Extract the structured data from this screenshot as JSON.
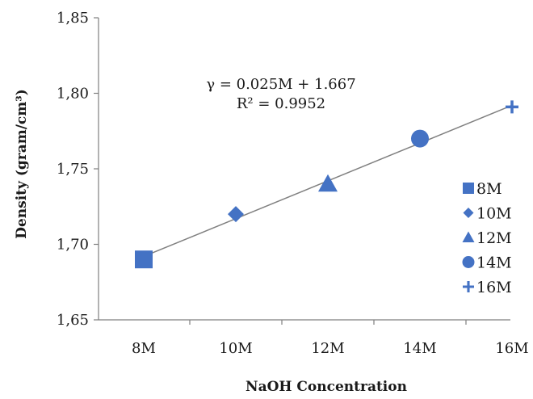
{
  "chart_data": {
    "type": "scatter",
    "title": "",
    "xlabel": "NaOH Concentration",
    "ylabel": "Density (gram/cm³)",
    "categories": [
      "8M",
      "10M",
      "12M",
      "14M",
      "16M"
    ],
    "ylim": [
      1.65,
      1.85
    ],
    "yticks": [
      "1,65",
      "1,70",
      "1,75",
      "1,80",
      "1,85"
    ],
    "grid": false,
    "legend_position": "right",
    "series": [
      {
        "name": "8M",
        "marker": "square",
        "x": "8M",
        "y": 1.69
      },
      {
        "name": "10M",
        "marker": "diamond",
        "x": "10M",
        "y": 1.72
      },
      {
        "name": "12M",
        "marker": "triangle",
        "x": "12M",
        "y": 1.74
      },
      {
        "name": "14M",
        "marker": "circle",
        "x": "14M",
        "y": 1.77
      },
      {
        "name": "16M",
        "marker": "plus",
        "x": "16M",
        "y": 1.791
      }
    ],
    "trendline": {
      "type": "linear",
      "equation": "γ = 0.025M + 1.667",
      "r_squared": "R² = 0.9952",
      "start": {
        "x": "8M",
        "y": 1.692
      },
      "end": {
        "x": "16M",
        "y": 1.792
      }
    },
    "colors": {
      "marker": "#4472c4",
      "trendline": "#808080",
      "axis": "#7f7f7f"
    }
  }
}
